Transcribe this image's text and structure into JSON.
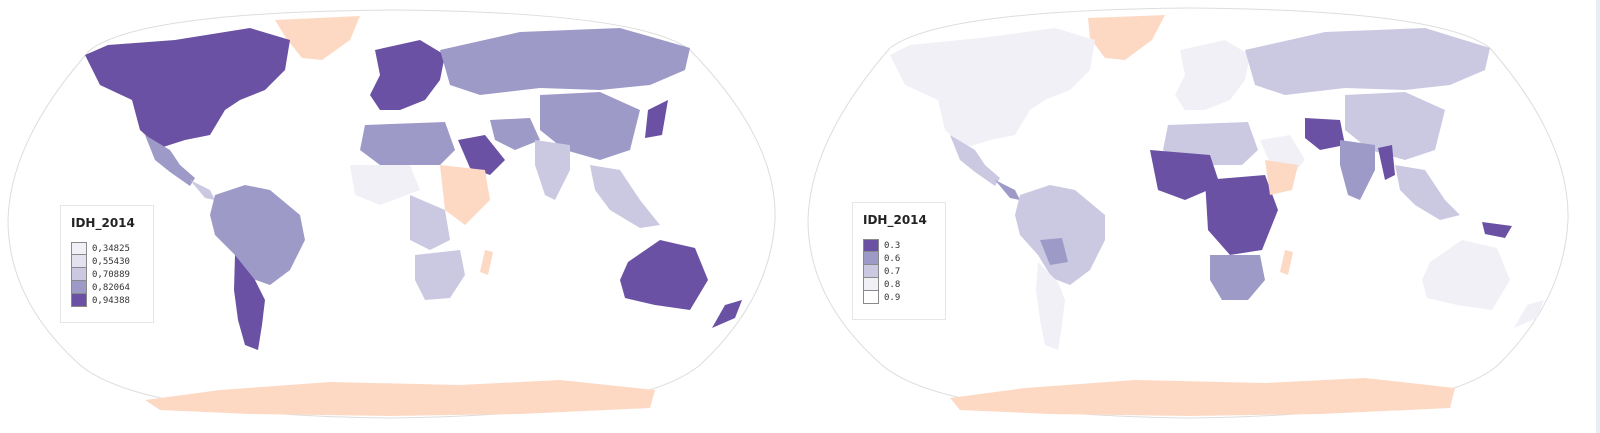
{
  "colors": {
    "c1": "#f2f0f7",
    "c2": "#cbc9e2",
    "c3": "#9e9ac8",
    "c4": "#6a51a3",
    "nodata": "#fdd9c4",
    "ocean": "#ffffff",
    "outline": "#dddddd"
  },
  "maps": [
    {
      "legend": {
        "title": "IDH_2014",
        "items": [
          {
            "label": "0,34825",
            "color": "#f2f0f7"
          },
          {
            "label": "0,55430",
            "color": "#e4e2ef"
          },
          {
            "label": "0,70889",
            "color": "#cbc9e2"
          },
          {
            "label": "0,82064",
            "color": "#9e9ac8"
          },
          {
            "label": "0,94388",
            "color": "#6a51a3"
          }
        ]
      }
    },
    {
      "legend": {
        "title": "IDH_2014",
        "items": [
          {
            "label": "0.3",
            "color": "#6a51a3"
          },
          {
            "label": "0.6",
            "color": "#9e9ac8"
          },
          {
            "label": "0.7",
            "color": "#cbc9e2"
          },
          {
            "label": "0.8",
            "color": "#f2f0f7"
          },
          {
            "label": "0.9",
            "color": "#ffffff"
          }
        ]
      }
    }
  ]
}
